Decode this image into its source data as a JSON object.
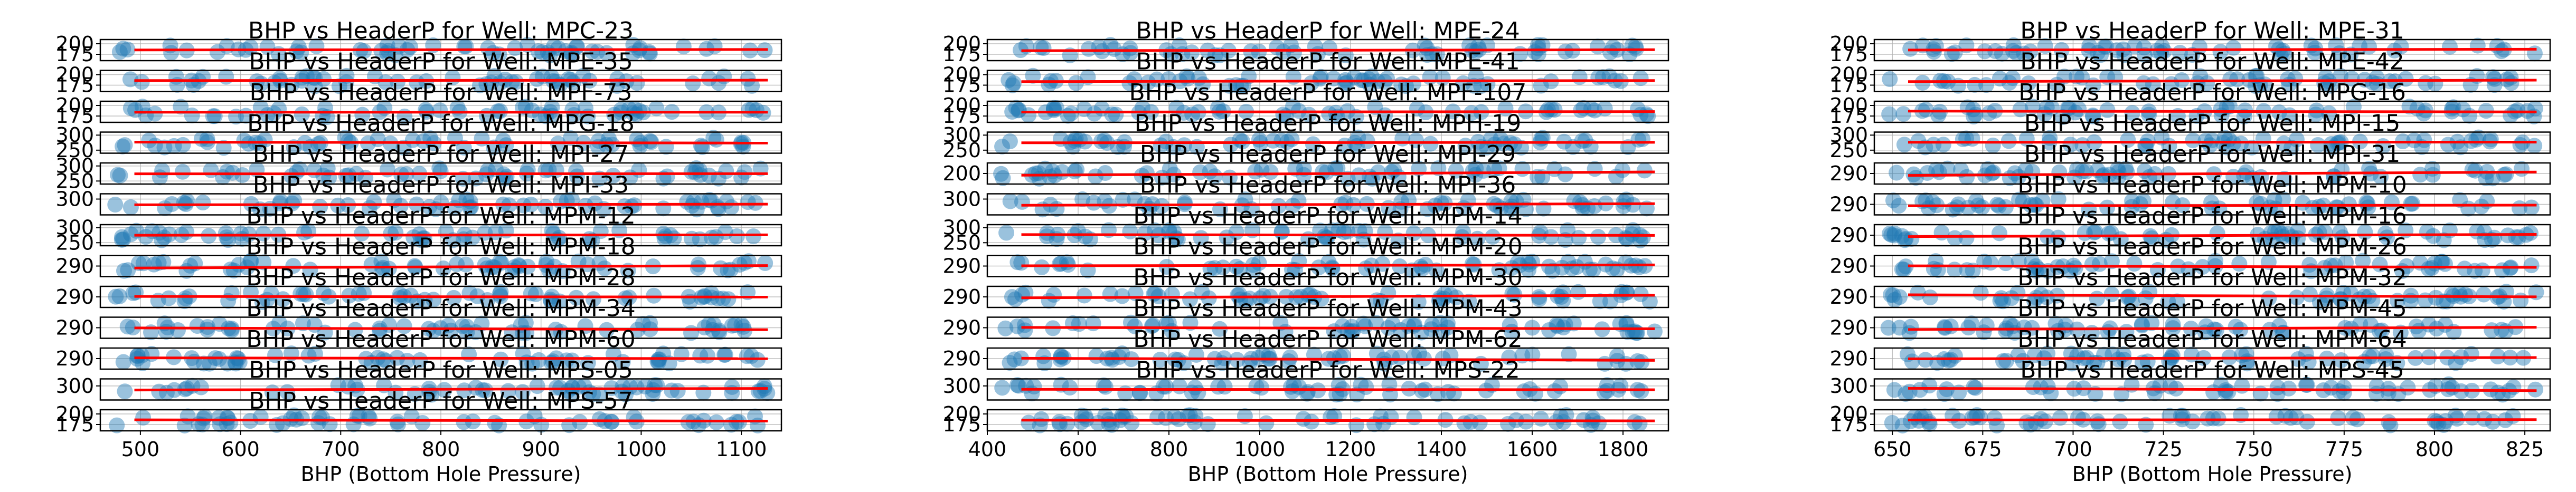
{
  "chart_data": [
    {
      "type": "scatter",
      "xlabel": "BHP (Bottom Hole Pressure)",
      "x_ticks": [
        "500",
        "600",
        "700",
        "800",
        "900",
        "1000",
        "1100"
      ],
      "xlim": [
        460,
        1140
      ],
      "subplots": [
        {
          "title": "BHP vs HeaderP for Well: MPC-23",
          "ylim": [
            160,
            210
          ],
          "y_ticks": [
            "200",
            "175"
          ]
        },
        {
          "title": "BHP vs HeaderP for Well: MPE-35",
          "ylim": [
            160,
            210
          ],
          "y_ticks": [
            "200",
            "175"
          ]
        },
        {
          "title": "BHP vs HeaderP for Well: MPF-73",
          "ylim": [
            160,
            210
          ],
          "y_ticks": [
            "200",
            "175"
          ]
        },
        {
          "title": "BHP vs HeaderP for Well: MPG-18",
          "ylim": [
            240,
            310
          ],
          "y_ticks": [
            "300",
            "250"
          ]
        },
        {
          "title": "BHP vs HeaderP for Well: MPI-27",
          "ylim": [
            240,
            310
          ],
          "y_ticks": [
            "300",
            "250"
          ]
        },
        {
          "title": "BHP vs HeaderP for Well: MPI-33",
          "ylim": [
            270,
            310
          ],
          "y_ticks": [
            "300"
          ]
        },
        {
          "title": "BHP vs HeaderP for Well: MPM-12",
          "ylim": [
            240,
            310
          ],
          "y_ticks": [
            "300",
            "250"
          ]
        },
        {
          "title": "BHP vs HeaderP for Well: MPM-18",
          "ylim": [
            280,
            300
          ],
          "y_ticks": [
            "290"
          ]
        },
        {
          "title": "BHP vs HeaderP for Well: MPM-28",
          "ylim": [
            280,
            300
          ],
          "y_ticks": [
            "290"
          ]
        },
        {
          "title": "BHP vs HeaderP for Well: MPM-34",
          "ylim": [
            280,
            300
          ],
          "y_ticks": [
            "290"
          ]
        },
        {
          "title": "BHP vs HeaderP for Well: MPM-60",
          "ylim": [
            280,
            300
          ],
          "y_ticks": [
            "290"
          ]
        },
        {
          "title": "BHP vs HeaderP for Well: MPS-05",
          "ylim": [
            280,
            310
          ],
          "y_ticks": [
            "300"
          ]
        },
        {
          "title": "BHP vs HeaderP for Well: MPS-57",
          "ylim": [
            160,
            210
          ],
          "y_ticks": [
            "200",
            "175"
          ]
        }
      ]
    },
    {
      "type": "scatter",
      "xlabel": "BHP (Bottom Hole Pressure)",
      "x_ticks": [
        "400",
        "600",
        "800",
        "1000",
        "1200",
        "1400",
        "1600",
        "1800"
      ],
      "xlim": [
        400,
        1900
      ],
      "subplots": [
        {
          "title": "BHP vs HeaderP for Well: MPE-24",
          "ylim": [
            160,
            210
          ],
          "y_ticks": [
            "200",
            "175"
          ]
        },
        {
          "title": "BHP vs HeaderP for Well: MPE-41",
          "ylim": [
            160,
            210
          ],
          "y_ticks": [
            "200",
            "175"
          ]
        },
        {
          "title": "BHP vs HeaderP for Well: MPF-107",
          "ylim": [
            160,
            210
          ],
          "y_ticks": [
            "200",
            "175"
          ]
        },
        {
          "title": "BHP vs HeaderP for Well: MPH-19",
          "ylim": [
            240,
            310
          ],
          "y_ticks": [
            "300",
            "250"
          ]
        },
        {
          "title": "BHP vs HeaderP for Well: MPI-29",
          "ylim": [
            190,
            210
          ],
          "y_ticks": [
            "200"
          ]
        },
        {
          "title": "BHP vs HeaderP for Well: MPI-36",
          "ylim": [
            270,
            310
          ],
          "y_ticks": [
            "300"
          ]
        },
        {
          "title": "BHP vs HeaderP for Well: MPM-14",
          "ylim": [
            240,
            310
          ],
          "y_ticks": [
            "300",
            "250"
          ]
        },
        {
          "title": "BHP vs HeaderP for Well: MPM-20",
          "ylim": [
            280,
            300
          ],
          "y_ticks": [
            "290"
          ]
        },
        {
          "title": "BHP vs HeaderP for Well: MPM-30",
          "ylim": [
            280,
            300
          ],
          "y_ticks": [
            "290"
          ]
        },
        {
          "title": "BHP vs HeaderP for Well: MPM-43",
          "ylim": [
            280,
            300
          ],
          "y_ticks": [
            "290"
          ]
        },
        {
          "title": "BHP vs HeaderP for Well: MPM-62",
          "ylim": [
            280,
            300
          ],
          "y_ticks": [
            "290"
          ]
        },
        {
          "title": "BHP vs HeaderP for Well: MPS-22",
          "ylim": [
            280,
            310
          ],
          "y_ticks": [
            "300"
          ]
        },
        {
          "title": "",
          "ylim": [
            160,
            210
          ],
          "y_ticks": [
            "200",
            "175"
          ]
        }
      ]
    },
    {
      "type": "scatter",
      "xlabel": "BHP (Bottom Hole Pressure)",
      "x_ticks": [
        "650",
        "675",
        "700",
        "725",
        "750",
        "775",
        "800",
        "825"
      ],
      "xlim": [
        645,
        832
      ],
      "subplots": [
        {
          "title": "BHP vs HeaderP for Well: MPE-31",
          "ylim": [
            160,
            210
          ],
          "y_ticks": [
            "200",
            "175"
          ]
        },
        {
          "title": "BHP vs HeaderP for Well: MPE-42",
          "ylim": [
            160,
            210
          ],
          "y_ticks": [
            "200",
            "175"
          ]
        },
        {
          "title": "BHP vs HeaderP for Well: MPG-16",
          "ylim": [
            160,
            210
          ],
          "y_ticks": [
            "200",
            "175"
          ]
        },
        {
          "title": "BHP vs HeaderP for Well: MPI-15",
          "ylim": [
            240,
            310
          ],
          "y_ticks": [
            "300",
            "250"
          ]
        },
        {
          "title": "BHP vs HeaderP for Well: MPI-31",
          "ylim": [
            280,
            300
          ],
          "y_ticks": [
            "290"
          ]
        },
        {
          "title": "BHP vs HeaderP for Well: MPM-10",
          "ylim": [
            280,
            300
          ],
          "y_ticks": [
            "290"
          ]
        },
        {
          "title": "BHP vs HeaderP for Well: MPM-16",
          "ylim": [
            280,
            300
          ],
          "y_ticks": [
            "290"
          ]
        },
        {
          "title": "BHP vs HeaderP for Well: MPM-26",
          "ylim": [
            280,
            300
          ],
          "y_ticks": [
            "290"
          ]
        },
        {
          "title": "BHP vs HeaderP for Well: MPM-32",
          "ylim": [
            280,
            300
          ],
          "y_ticks": [
            "290"
          ]
        },
        {
          "title": "BHP vs HeaderP for Well: MPM-45",
          "ylim": [
            280,
            300
          ],
          "y_ticks": [
            "290"
          ]
        },
        {
          "title": "BHP vs HeaderP for Well: MPM-64",
          "ylim": [
            280,
            300
          ],
          "y_ticks": [
            "290"
          ]
        },
        {
          "title": "BHP vs HeaderP for Well: MPS-45",
          "ylim": [
            280,
            310
          ],
          "y_ticks": [
            "300"
          ]
        },
        {
          "title": "",
          "ylim": [
            160,
            210
          ],
          "y_ticks": [
            "200",
            "175"
          ]
        }
      ]
    }
  ],
  "colors": {
    "points": "#1f77b4",
    "fit_line": "#ff0000",
    "grid": "#b0b0b0"
  },
  "grid": true
}
